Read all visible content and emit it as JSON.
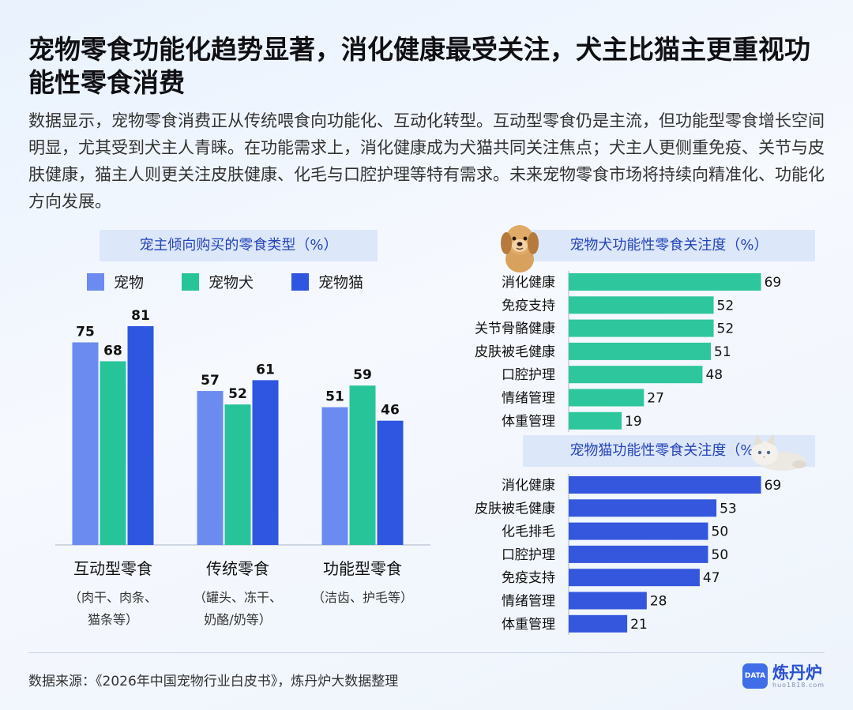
{
  "title": "宠物零食功能化趋势显著，消化健康最受关注，犬主比猫主更重视功能性零食消费",
  "description": "数据显示，宠物零食消费正从传统喂食向功能化、互动化转型。互动型零食仍是主流，但功能型零食增长空间明显，尤其受到犬主人青睐。在功能需求上，消化健康成为犬猫共同关注焦点；犬主人更侧重免疫、关节与皮肤健康，猫主人则更关注皮肤健康、化毛与口腔护理等特有需求。未来宠物零食市场将持续向精准化、功能化方向发展。",
  "source": "数据来源：《2026年中国宠物行业白皮书》，炼丹炉大数据整理",
  "logo": {
    "name": "炼丹炉",
    "url": "huo1818.com",
    "badge": "DATA"
  },
  "colors": {
    "pet": "#6b8bf0",
    "dog": "#27c49a",
    "cat": "#2f56e0",
    "dog_bar": "#2ec69c",
    "cat_bar": "#3557dd"
  },
  "chart_data": [
    {
      "type": "bar",
      "title": "宠主倾向购买的零食类型（%）",
      "categories": [
        "互动型零食",
        "传统零食",
        "功能型零食"
      ],
      "category_notes": [
        [
          "（肉干、肉条、",
          "猫条等）"
        ],
        [
          "（罐头、冻干、",
          "奶酪/奶等）"
        ],
        [
          "（洁齿、护毛等）"
        ]
      ],
      "series": [
        {
          "name": "宠物",
          "values": [
            75,
            57,
            51
          ]
        },
        {
          "name": "宠物犬",
          "values": [
            68,
            52,
            59
          ]
        },
        {
          "name": "宠物猫",
          "values": [
            81,
            61,
            46
          ]
        }
      ],
      "ylim": [
        0,
        100
      ]
    },
    {
      "type": "bar",
      "orientation": "horizontal",
      "title": "宠物犬功能性零食关注度（%）",
      "categories": [
        "消化健康",
        "免疫支持",
        "关节骨骼健康",
        "皮肤被毛健康",
        "口腔护理",
        "情绪管理",
        "体重管理"
      ],
      "values": [
        69,
        52,
        52,
        51,
        48,
        27,
        19
      ]
    },
    {
      "type": "bar",
      "orientation": "horizontal",
      "title": "宠物猫功能性零食关注度（%）",
      "categories": [
        "消化健康",
        "皮肤被毛健康",
        "化毛排毛",
        "口腔护理",
        "免疫支持",
        "情绪管理",
        "体重管理"
      ],
      "values": [
        69,
        53,
        50,
        50,
        47,
        28,
        21
      ]
    }
  ]
}
